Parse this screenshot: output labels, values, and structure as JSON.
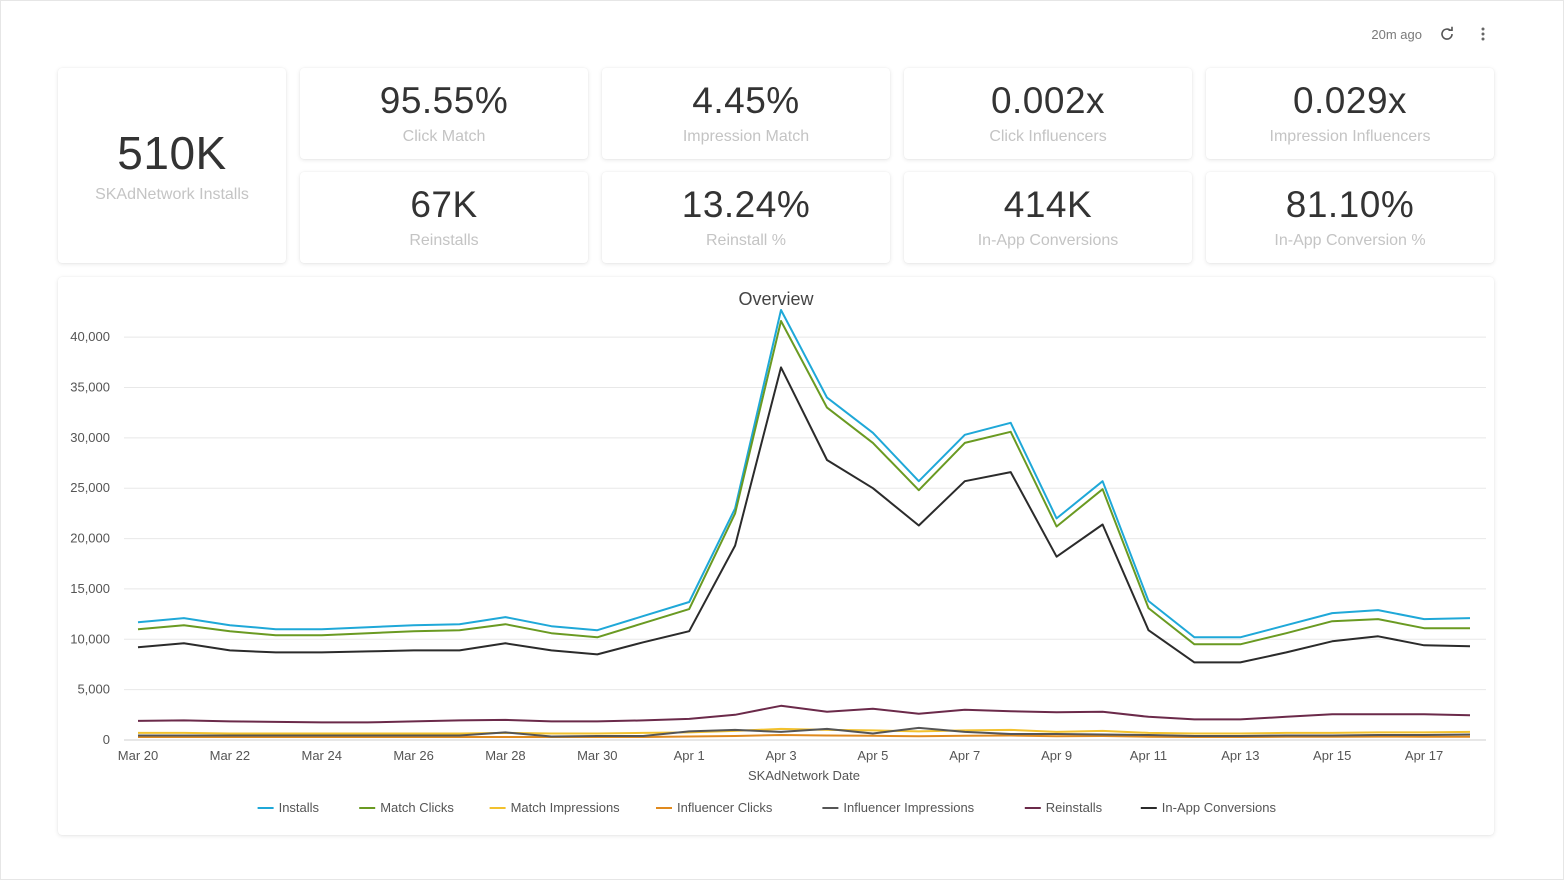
{
  "header": {
    "updated": "20m ago"
  },
  "kpis": {
    "installs": {
      "value": "510K",
      "label": "SKAdNetwork Installs"
    },
    "grid": [
      {
        "value": "95.55%",
        "label": "Click Match"
      },
      {
        "value": "4.45%",
        "label": "Impression Match"
      },
      {
        "value": "0.002x",
        "label": "Click Influencers"
      },
      {
        "value": "0.029x",
        "label": "Impression Influencers"
      },
      {
        "value": "67K",
        "label": "Reinstalls"
      },
      {
        "value": "13.24%",
        "label": "Reinstall %"
      },
      {
        "value": "414K",
        "label": "In-App Conversions"
      },
      {
        "value": "81.10%",
        "label": "In-App Conversion %"
      }
    ]
  },
  "chart_data": {
    "type": "line",
    "title": "Overview",
    "xlabel": "SKAdNetwork Date",
    "ylabel": "",
    "ylim": [
      0,
      42000
    ],
    "yticks": [
      0,
      5000,
      10000,
      15000,
      20000,
      25000,
      30000,
      35000,
      40000
    ],
    "ytick_labels": [
      "0",
      "5,000",
      "10,000",
      "15,000",
      "20,000",
      "25,000",
      "30,000",
      "35,000",
      "40,000"
    ],
    "x": [
      "Mar 20",
      "Mar 21",
      "Mar 22",
      "Mar 23",
      "Mar 24",
      "Mar 25",
      "Mar 26",
      "Mar 27",
      "Mar 28",
      "Mar 29",
      "Mar 30",
      "Mar 31",
      "Apr 1",
      "Apr 2",
      "Apr 3",
      "Apr 4",
      "Apr 5",
      "Apr 6",
      "Apr 7",
      "Apr 8",
      "Apr 9",
      "Apr 10",
      "Apr 11",
      "Apr 12",
      "Apr 13",
      "Apr 14",
      "Apr 15",
      "Apr 16",
      "Apr 17",
      "Apr 18"
    ],
    "xtick_labels": [
      "Mar 20",
      "Mar 22",
      "Mar 24",
      "Mar 26",
      "Mar 28",
      "Mar 30",
      "Apr 1",
      "Apr 3",
      "Apr 5",
      "Apr 7",
      "Apr 9",
      "Apr 11",
      "Apr 13",
      "Apr 15",
      "Apr 17"
    ],
    "grid": true,
    "legend": "bottom",
    "series": [
      {
        "name": "Installs",
        "color": "#1fa8d8",
        "values": [
          11700,
          12100,
          11400,
          11000,
          11000,
          11200,
          11400,
          11500,
          12200,
          11300,
          10900,
          12300,
          13700,
          23000,
          42700,
          34000,
          30500,
          25700,
          30300,
          31500,
          22000,
          25700,
          13800,
          10200,
          10200,
          11400,
          12600,
          12900,
          12000,
          12100
        ]
      },
      {
        "name": "Match Clicks",
        "color": "#6a9a22",
        "values": [
          11000,
          11400,
          10800,
          10400,
          10400,
          10600,
          10800,
          10900,
          11500,
          10600,
          10200,
          11600,
          13000,
          22500,
          41600,
          33000,
          29500,
          24800,
          29500,
          30600,
          21200,
          24900,
          13100,
          9500,
          9500,
          10600,
          11800,
          12000,
          11100,
          11100
        ]
      },
      {
        "name": "Match Impressions",
        "color": "#f2c12e",
        "values": [
          700,
          700,
          650,
          650,
          650,
          650,
          650,
          650,
          700,
          650,
          650,
          700,
          750,
          900,
          1100,
          1000,
          950,
          850,
          950,
          1000,
          800,
          900,
          700,
          650,
          650,
          700,
          700,
          750,
          750,
          800
        ]
      },
      {
        "name": "Influencer Clicks",
        "color": "#e08a1e",
        "values": [
          300,
          300,
          300,
          300,
          300,
          300,
          300,
          300,
          300,
          300,
          300,
          300,
          350,
          400,
          500,
          450,
          420,
          380,
          420,
          450,
          380,
          400,
          330,
          300,
          300,
          320,
          330,
          340,
          330,
          330
        ]
      },
      {
        "name": "Influencer Impressions",
        "color": "#555555",
        "values": [
          450,
          450,
          450,
          450,
          450,
          450,
          450,
          450,
          750,
          350,
          400,
          400,
          850,
          1000,
          800,
          1100,
          650,
          1200,
          800,
          600,
          600,
          550,
          500,
          400,
          400,
          450,
          450,
          500,
          500,
          550
        ]
      },
      {
        "name": "Reinstalls",
        "color": "#6b2a4a",
        "values": [
          1900,
          1950,
          1850,
          1800,
          1750,
          1750,
          1850,
          1950,
          2000,
          1850,
          1850,
          1950,
          2100,
          2500,
          3400,
          2800,
          3100,
          2600,
          3000,
          2850,
          2750,
          2800,
          2300,
          2050,
          2050,
          2300,
          2550,
          2550,
          2550,
          2450
        ]
      },
      {
        "name": "In-App Conversions",
        "color": "#2b2b2b",
        "values": [
          9200,
          9600,
          8900,
          8700,
          8700,
          8800,
          8900,
          8900,
          9600,
          8900,
          8500,
          9700,
          10800,
          19300,
          37000,
          27800,
          25000,
          21300,
          25700,
          26600,
          18200,
          21400,
          10900,
          7700,
          7700,
          8700,
          9800,
          10300,
          9400,
          9300
        ]
      }
    ]
  }
}
